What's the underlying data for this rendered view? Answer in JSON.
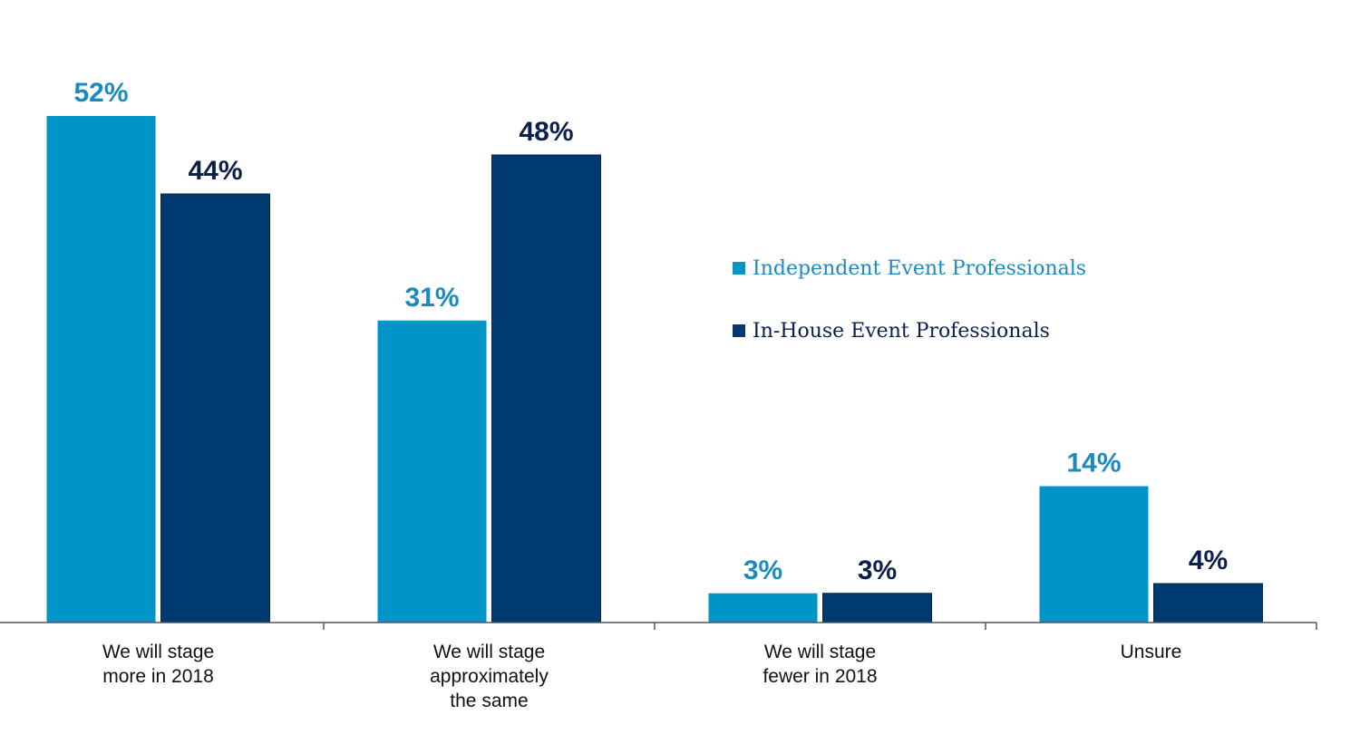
{
  "chart_data": {
    "type": "bar",
    "title": "",
    "xlabel": "",
    "ylabel": "",
    "ylim": [
      0,
      52
    ],
    "grid": false,
    "legend_position": "right-middle",
    "categories": [
      [
        "We will stage",
        "more in 2018"
      ],
      [
        "We will stage",
        "approximately",
        "the same"
      ],
      [
        "We will stage",
        "fewer in 2018"
      ],
      [
        "Unsure"
      ]
    ],
    "series": [
      {
        "name": "Independent Event Professionals",
        "color": "#0095C8",
        "values": [
          52,
          31,
          3,
          14
        ],
        "labels": [
          "52%",
          "31%",
          "3%",
          "14%"
        ]
      },
      {
        "name": "In-House Event Professionals",
        "color": "#003A70",
        "values": [
          44,
          48,
          3,
          4
        ],
        "labels": [
          "44%",
          "48%",
          "3%",
          "4%"
        ]
      }
    ],
    "label_colors": [
      "#1A8AC0",
      "#0B1F4D"
    ]
  }
}
